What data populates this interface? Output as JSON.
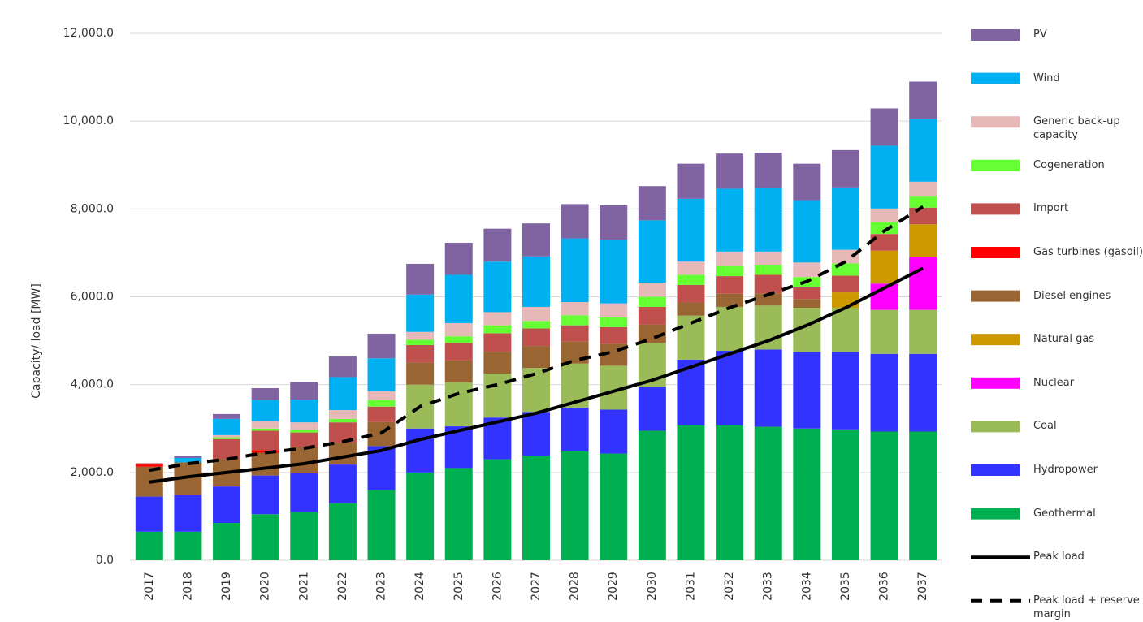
{
  "chart_data": {
    "type": "stacked_bar_line",
    "y_label": "Capacity/ load [MW]",
    "categories": [
      "2017",
      "2018",
      "2019",
      "2020",
      "2021",
      "2022",
      "2023",
      "2024",
      "2025",
      "2026",
      "2027",
      "2028",
      "2029",
      "2030",
      "2031",
      "2032",
      "2033",
      "2034",
      "2035",
      "2036",
      "2037"
    ],
    "ylim": [
      0,
      12000
    ],
    "yticks": [
      {
        "value": 0,
        "label": "0.0"
      },
      {
        "value": 2000,
        "label": "2,000.0"
      },
      {
        "value": 4000,
        "label": "4,000.0"
      },
      {
        "value": 6000,
        "label": "6,000.0"
      },
      {
        "value": 8000,
        "label": "8,000.0"
      },
      {
        "value": 10000,
        "label": "10,000.0"
      },
      {
        "value": 12000,
        "label": "12,000.0"
      }
    ],
    "grid": true,
    "legend": "right",
    "series": [
      {
        "name": "Geothermal",
        "color": "#00b050",
        "values": [
          650,
          650,
          850,
          1050,
          1100,
          1300,
          1600,
          2000,
          2100,
          2300,
          2380,
          2480,
          2430,
          2950,
          3070,
          3070,
          3040,
          3000,
          2980,
          2930,
          2930
        ]
      },
      {
        "name": "Hydropower",
        "color": "#3333ff",
        "values": [
          800,
          830,
          830,
          880,
          880,
          880,
          1000,
          1000,
          950,
          950,
          1000,
          1000,
          1000,
          1000,
          1500,
          1700,
          1760,
          1750,
          1770,
          1770,
          1770
        ]
      },
      {
        "name": "Coal",
        "color": "#9bbb59",
        "values": [
          0,
          0,
          0,
          0,
          0,
          0,
          0,
          1000,
          1000,
          1000,
          1000,
          1000,
          1000,
          1000,
          1000,
          1000,
          1000,
          1000,
          1000,
          1000,
          1000
        ]
      },
      {
        "name": "Nuclear",
        "color": "#ff00ff",
        "values": [
          0,
          0,
          0,
          0,
          0,
          0,
          0,
          0,
          0,
          0,
          0,
          0,
          0,
          0,
          0,
          0,
          0,
          0,
          0,
          600,
          1200
        ]
      },
      {
        "name": "Natural gas",
        "color": "#cc9900",
        "values": [
          0,
          0,
          0,
          0,
          0,
          0,
          0,
          0,
          0,
          0,
          0,
          0,
          0,
          0,
          0,
          0,
          0,
          0,
          350,
          750,
          750
        ]
      },
      {
        "name": "Diesel engines",
        "color": "#996633",
        "values": [
          680,
          750,
          630,
          520,
          600,
          500,
          550,
          500,
          500,
          500,
          500,
          500,
          500,
          420,
          300,
          300,
          280,
          200,
          0,
          0,
          0
        ]
      },
      {
        "name": "Gas turbines (gasoil)",
        "color": "#ff0000",
        "values": [
          50,
          0,
          0,
          60,
          0,
          0,
          0,
          0,
          0,
          0,
          0,
          0,
          0,
          0,
          0,
          0,
          0,
          0,
          0,
          0,
          0
        ]
      },
      {
        "name": "Import",
        "color": "#c0504d",
        "values": [
          30,
          0,
          450,
          440,
          330,
          460,
          350,
          400,
          400,
          420,
          400,
          370,
          380,
          400,
          400,
          400,
          420,
          280,
          380,
          380,
          380
        ]
      },
      {
        "name": "Cogeneration",
        "color": "#66ff33",
        "values": [
          0,
          0,
          40,
          50,
          60,
          80,
          150,
          120,
          150,
          180,
          170,
          230,
          220,
          230,
          230,
          230,
          230,
          220,
          280,
          270,
          270
        ]
      },
      {
        "name": "Generic back-up capacity",
        "color": "#e6b9b8",
        "values": [
          0,
          0,
          50,
          170,
          170,
          200,
          200,
          180,
          300,
          300,
          320,
          300,
          320,
          320,
          300,
          330,
          300,
          330,
          310,
          310,
          320
        ]
      },
      {
        "name": "Wind",
        "color": "#00b0f0",
        "values": [
          0,
          100,
          370,
          480,
          520,
          750,
          750,
          850,
          1100,
          1150,
          1150,
          1450,
          1450,
          1420,
          1430,
          1430,
          1440,
          1420,
          1420,
          1430,
          1430
        ]
      },
      {
        "name": "PV",
        "color": "#8064a2",
        "values": [
          0,
          50,
          110,
          270,
          400,
          470,
          560,
          700,
          730,
          750,
          750,
          780,
          780,
          780,
          800,
          800,
          810,
          830,
          850,
          850,
          850
        ]
      }
    ],
    "lines": [
      {
        "name": "Peak load",
        "color": "#000000",
        "dash": false,
        "values": [
          1780,
          1900,
          2000,
          2100,
          2200,
          2350,
          2500,
          2750,
          2950,
          3150,
          3350,
          3600,
          3850,
          4100,
          4400,
          4700,
          5000,
          5350,
          5750,
          6200,
          6650
        ]
      },
      {
        "name": "Peak load + reserve margin",
        "color": "#000000",
        "dash": true,
        "values": [
          2050,
          2200,
          2300,
          2450,
          2550,
          2700,
          2900,
          3500,
          3800,
          4000,
          4250,
          4550,
          4750,
          5050,
          5400,
          5750,
          6050,
          6350,
          6800,
          7500,
          8050
        ]
      }
    ]
  }
}
